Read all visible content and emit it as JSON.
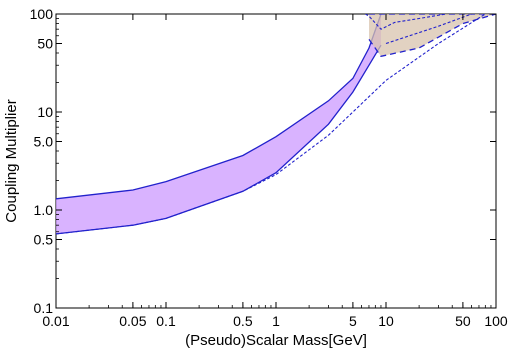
{
  "chart_data": {
    "type": "area",
    "title": "",
    "xlabel": "(Pseudo)Scalar Mass[GeV]",
    "ylabel": "Coupling Multiplier",
    "x_scale": "log",
    "y_scale": "log",
    "xlim": [
      0.01,
      100
    ],
    "ylim": [
      0.1,
      100
    ],
    "grid": false,
    "legend": "none",
    "x_ticks": [
      {
        "value": 0.01,
        "label": "0.01"
      },
      {
        "value": 0.05,
        "label": "0.05"
      },
      {
        "value": 0.1,
        "label": "0.1"
      },
      {
        "value": 0.5,
        "label": "0.5"
      },
      {
        "value": 1,
        "label": "1"
      },
      {
        "value": 5,
        "label": "5"
      },
      {
        "value": 10,
        "label": "10"
      },
      {
        "value": 50,
        "label": "50"
      },
      {
        "value": 100,
        "label": "100"
      }
    ],
    "y_ticks": [
      {
        "value": 0.1,
        "label": "0.1"
      },
      {
        "value": 0.5,
        "label": "0.5"
      },
      {
        "value": 1,
        "label": "1.0"
      },
      {
        "value": 5,
        "label": "5.0"
      },
      {
        "value": 10,
        "label": "10"
      },
      {
        "value": 50,
        "label": "50"
      },
      {
        "value": 100,
        "label": "100"
      }
    ],
    "series": [
      {
        "style": "band",
        "fill": "#cc99ff",
        "stroke": "#2222cc",
        "upper": [
          [
            0.01,
            1.3
          ],
          [
            0.05,
            1.6
          ],
          [
            0.1,
            1.95
          ],
          [
            0.5,
            3.6
          ],
          [
            1,
            5.6
          ],
          [
            3,
            13
          ],
          [
            5,
            22
          ],
          [
            7,
            45
          ],
          [
            9,
            100
          ]
        ],
        "lower": [
          [
            0.01,
            0.57
          ],
          [
            0.05,
            0.7
          ],
          [
            0.1,
            0.82
          ],
          [
            0.5,
            1.55
          ],
          [
            1,
            2.4
          ],
          [
            3,
            7.5
          ],
          [
            5,
            16
          ],
          [
            7,
            30
          ],
          [
            9,
            48
          ]
        ]
      },
      {
        "style": "band",
        "fill": "#d8c3ad",
        "stroke": "#2222cc",
        "dashed": true,
        "upper": [
          [
            7,
            100
          ],
          [
            100,
            100
          ]
        ],
        "lower": [
          [
            7,
            55
          ],
          [
            9,
            37
          ],
          [
            20,
            45
          ],
          [
            50,
            80
          ],
          [
            100,
            100
          ]
        ]
      },
      {
        "style": "curve",
        "stroke": "#2222cc",
        "dashed": true,
        "points": [
          [
            0.01,
            0.57
          ],
          [
            0.05,
            0.7
          ],
          [
            0.1,
            0.82
          ],
          [
            0.5,
            1.55
          ],
          [
            1,
            2.3
          ],
          [
            3,
            5.8
          ],
          [
            5,
            10
          ],
          [
            10,
            21
          ],
          [
            30,
            50
          ],
          [
            80,
            100
          ]
        ]
      },
      {
        "style": "curve",
        "stroke": "#2222cc",
        "dashed": true,
        "points": [
          [
            10,
            50
          ],
          [
            30,
            75
          ],
          [
            60,
            100
          ]
        ]
      },
      {
        "style": "curve",
        "stroke": "#2222cc",
        "dashed": true,
        "points": [
          [
            6.5,
            100
          ],
          [
            7,
            95
          ],
          [
            9,
            70
          ],
          [
            12,
            82
          ],
          [
            20,
            90
          ],
          [
            35,
            100
          ]
        ]
      }
    ]
  }
}
